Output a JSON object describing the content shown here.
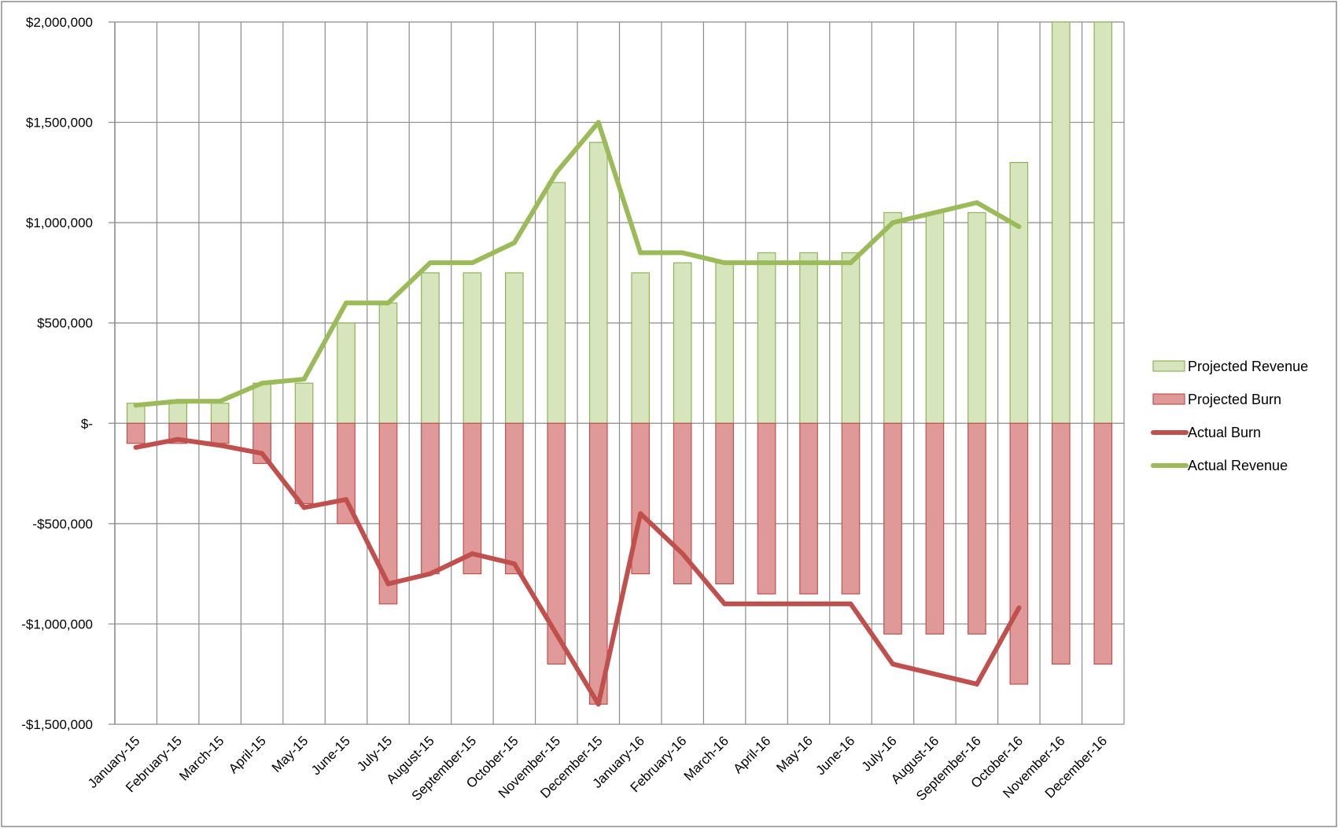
{
  "chart_data": {
    "type": "bar",
    "categories": [
      "January-15",
      "February-15",
      "March-15",
      "April-15",
      "May-15",
      "June-15",
      "July-15",
      "August-15",
      "September-15",
      "October-15",
      "November-15",
      "December-15",
      "January-16",
      "February-16",
      "March-16",
      "April-16",
      "May-16",
      "June-16",
      "July-16",
      "August-16",
      "September-16",
      "October-16",
      "November-16",
      "December-16"
    ],
    "y_tick_labels": [
      "$2,000,000",
      "$1,500,000",
      "$1,000,000",
      "$500,000",
      "$-",
      "-$500,000",
      "-$1,000,000",
      "-$1,500,000"
    ],
    "ylim": [
      -1500000,
      2000000
    ],
    "grid": true,
    "legend_position": "right",
    "series": [
      {
        "name": "Projected Revenue",
        "kind": "bar",
        "color": "#d6e5bb",
        "stroke": "#8fb35a",
        "values": [
          100000,
          100000,
          100000,
          200000,
          200000,
          500000,
          600000,
          750000,
          750000,
          750000,
          1200000,
          1400000,
          750000,
          800000,
          800000,
          850000,
          850000,
          850000,
          1050000,
          1050000,
          1050000,
          1300000,
          2000000,
          2000000
        ]
      },
      {
        "name": "Projected Burn",
        "kind": "bar",
        "color": "#df9999",
        "stroke": "#c0504d",
        "values": [
          -100000,
          -100000,
          -100000,
          -200000,
          -400000,
          -500000,
          -900000,
          -750000,
          -750000,
          -750000,
          -1200000,
          -1400000,
          -750000,
          -800000,
          -800000,
          -850000,
          -850000,
          -850000,
          -1050000,
          -1050000,
          -1050000,
          -1300000,
          -1200000,
          -1200000
        ]
      },
      {
        "name": "Actual Burn",
        "kind": "line",
        "color": "#c0504d",
        "values": [
          -120000,
          -80000,
          -110000,
          -150000,
          -420000,
          -380000,
          -800000,
          -750000,
          -650000,
          -700000,
          -1050000,
          -1400000,
          -450000,
          -650000,
          -900000,
          -900000,
          -900000,
          -900000,
          -1200000,
          -1250000,
          -1300000,
          -920000,
          null,
          null
        ]
      },
      {
        "name": "Actual Revenue",
        "kind": "line",
        "color": "#9bbb59",
        "values": [
          90000,
          110000,
          110000,
          200000,
          220000,
          600000,
          600000,
          800000,
          800000,
          900000,
          1250000,
          1500000,
          850000,
          850000,
          800000,
          800000,
          800000,
          800000,
          1000000,
          1050000,
          1100000,
          980000,
          null,
          null
        ]
      }
    ]
  }
}
